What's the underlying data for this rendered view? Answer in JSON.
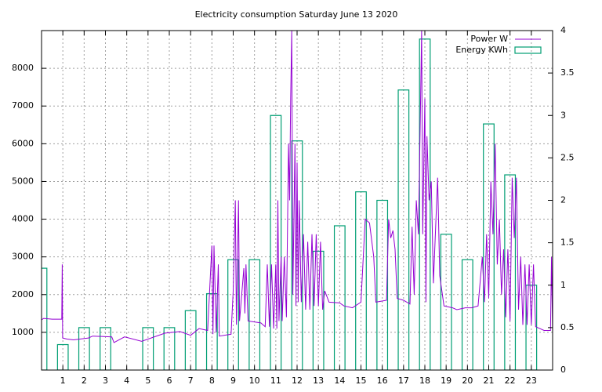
{
  "chart_data": {
    "type": "line",
    "title": "Electricity consumption Saturday June 13 2020",
    "xlim": [
      0,
      24
    ],
    "xticks": [
      1,
      2,
      3,
      4,
      5,
      6,
      7,
      8,
      9,
      10,
      11,
      12,
      13,
      14,
      15,
      16,
      17,
      18,
      19,
      20,
      21,
      22,
      23
    ],
    "ylim": [
      0,
      9000
    ],
    "yticks": [
      1000,
      2000,
      3000,
      4000,
      5000,
      6000,
      7000,
      8000
    ],
    "y2lim": [
      0,
      4
    ],
    "y2ticks": [
      0,
      0.5,
      1,
      1.5,
      2,
      2.5,
      3,
      3.5,
      4
    ],
    "grid": true,
    "legend": "top-right",
    "series": [
      {
        "name": "Power W",
        "color": "#9400d3",
        "type": "line",
        "x": [
          0,
          0.1,
          0.5,
          0.95,
          0.97,
          0.99,
          1.2,
          1.5,
          2.2,
          2.4,
          3.3,
          3.4,
          3.9,
          4.7,
          5.8,
          6.5,
          7,
          7.4,
          7.8,
          8.0,
          8.05,
          8.1,
          8.2,
          8.3,
          8.35,
          8.9,
          9.0,
          9.1,
          9.15,
          9.25,
          9.3,
          9.5,
          9.55,
          9.6,
          9.7,
          10.3,
          10.5,
          10.6,
          10.7,
          10.8,
          10.9,
          11.0,
          11.05,
          11.1,
          11.15,
          11.25,
          11.3,
          11.4,
          11.5,
          11.6,
          11.65,
          11.7,
          11.75,
          11.8,
          11.9,
          11.95,
          12.0,
          12.05,
          12.1,
          12.2,
          12.3,
          12.4,
          12.5,
          12.6,
          12.7,
          12.8,
          12.9,
          13.0,
          13.1,
          13.2,
          13.3,
          13.5,
          14,
          14.2,
          14.6,
          15,
          15.2,
          15.4,
          15.6,
          15.7,
          16.2,
          16.3,
          16.4,
          16.5,
          16.6,
          16.7,
          17.0,
          17.3,
          17.4,
          17.5,
          17.6,
          17.7,
          17.8,
          17.85,
          17.9,
          18.0,
          18.05,
          18.1,
          18.2,
          18.3,
          18.4,
          18.6,
          18.7,
          18.9,
          19.3,
          19.5,
          19.9,
          20.2,
          20.5,
          20.7,
          20.8,
          20.9,
          21.0,
          21.1,
          21.2,
          21.3,
          21.4,
          21.5,
          21.6,
          21.7,
          21.8,
          21.9,
          22.0,
          22.1,
          22.2,
          22.3,
          22.4,
          22.5,
          22.6,
          22.7,
          22.8,
          22.9,
          23.0,
          23.1,
          23.2,
          23.4,
          23.6,
          23.9,
          23.95,
          24
        ],
        "values": [
          1330,
          1370,
          1350,
          1350,
          2800,
          850,
          820,
          800,
          850,
          900,
          880,
          730,
          880,
          760,
          980,
          1020,
          920,
          1100,
          1050,
          3300,
          950,
          3300,
          1000,
          2800,
          900,
          950,
          2100,
          4500,
          1200,
          4500,
          1300,
          2700,
          1500,
          2800,
          1300,
          1250,
          1150,
          2800,
          1150,
          2800,
          1100,
          2800,
          1100,
          4500,
          1300,
          3000,
          1300,
          3000,
          1400,
          6000,
          4500,
          7200,
          9000,
          2000,
          6000,
          1700,
          5500,
          1800,
          4500,
          1800,
          3600,
          1600,
          3400,
          1600,
          3600,
          1700,
          3600,
          1700,
          3400,
          1600,
          2100,
          1800,
          1780,
          1700,
          1650,
          1800,
          4000,
          3900,
          3000,
          1800,
          1850,
          4000,
          3500,
          3700,
          3200,
          1900,
          1850,
          1750,
          3800,
          2000,
          4500,
          3600,
          7200,
          9000,
          3600,
          7200,
          1800,
          6200,
          4500,
          5000,
          2300,
          5100,
          2500,
          1700,
          1650,
          1600,
          1650,
          1650,
          1700,
          3000,
          1800,
          3600,
          1900,
          5000,
          3600,
          6000,
          2800,
          4000,
          2000,
          3200,
          1400,
          3200,
          1300,
          5100,
          3500,
          5100,
          1600,
          3000,
          1200,
          2800,
          1200,
          2800,
          1200,
          2800,
          1150,
          1100,
          1050,
          1050,
          3000,
          1000
        ]
      },
      {
        "name": "Energy KWh",
        "color": "#009e73",
        "type": "bar",
        "axis": "y2",
        "x": [
          0,
          1,
          2,
          3,
          4,
          5,
          6,
          7,
          8,
          9,
          10,
          11,
          12,
          13,
          14,
          15,
          16,
          17,
          18,
          19,
          20,
          21,
          22,
          23
        ],
        "values": [
          1.2,
          0.3,
          0.5,
          0.5,
          0,
          0.5,
          0.5,
          0.7,
          0.9,
          1.3,
          1.3,
          3.0,
          2.7,
          1.4,
          1.7,
          2.1,
          2.0,
          3.3,
          3.9,
          1.6,
          1.3,
          2.9,
          2.3,
          1.0
        ]
      }
    ]
  }
}
